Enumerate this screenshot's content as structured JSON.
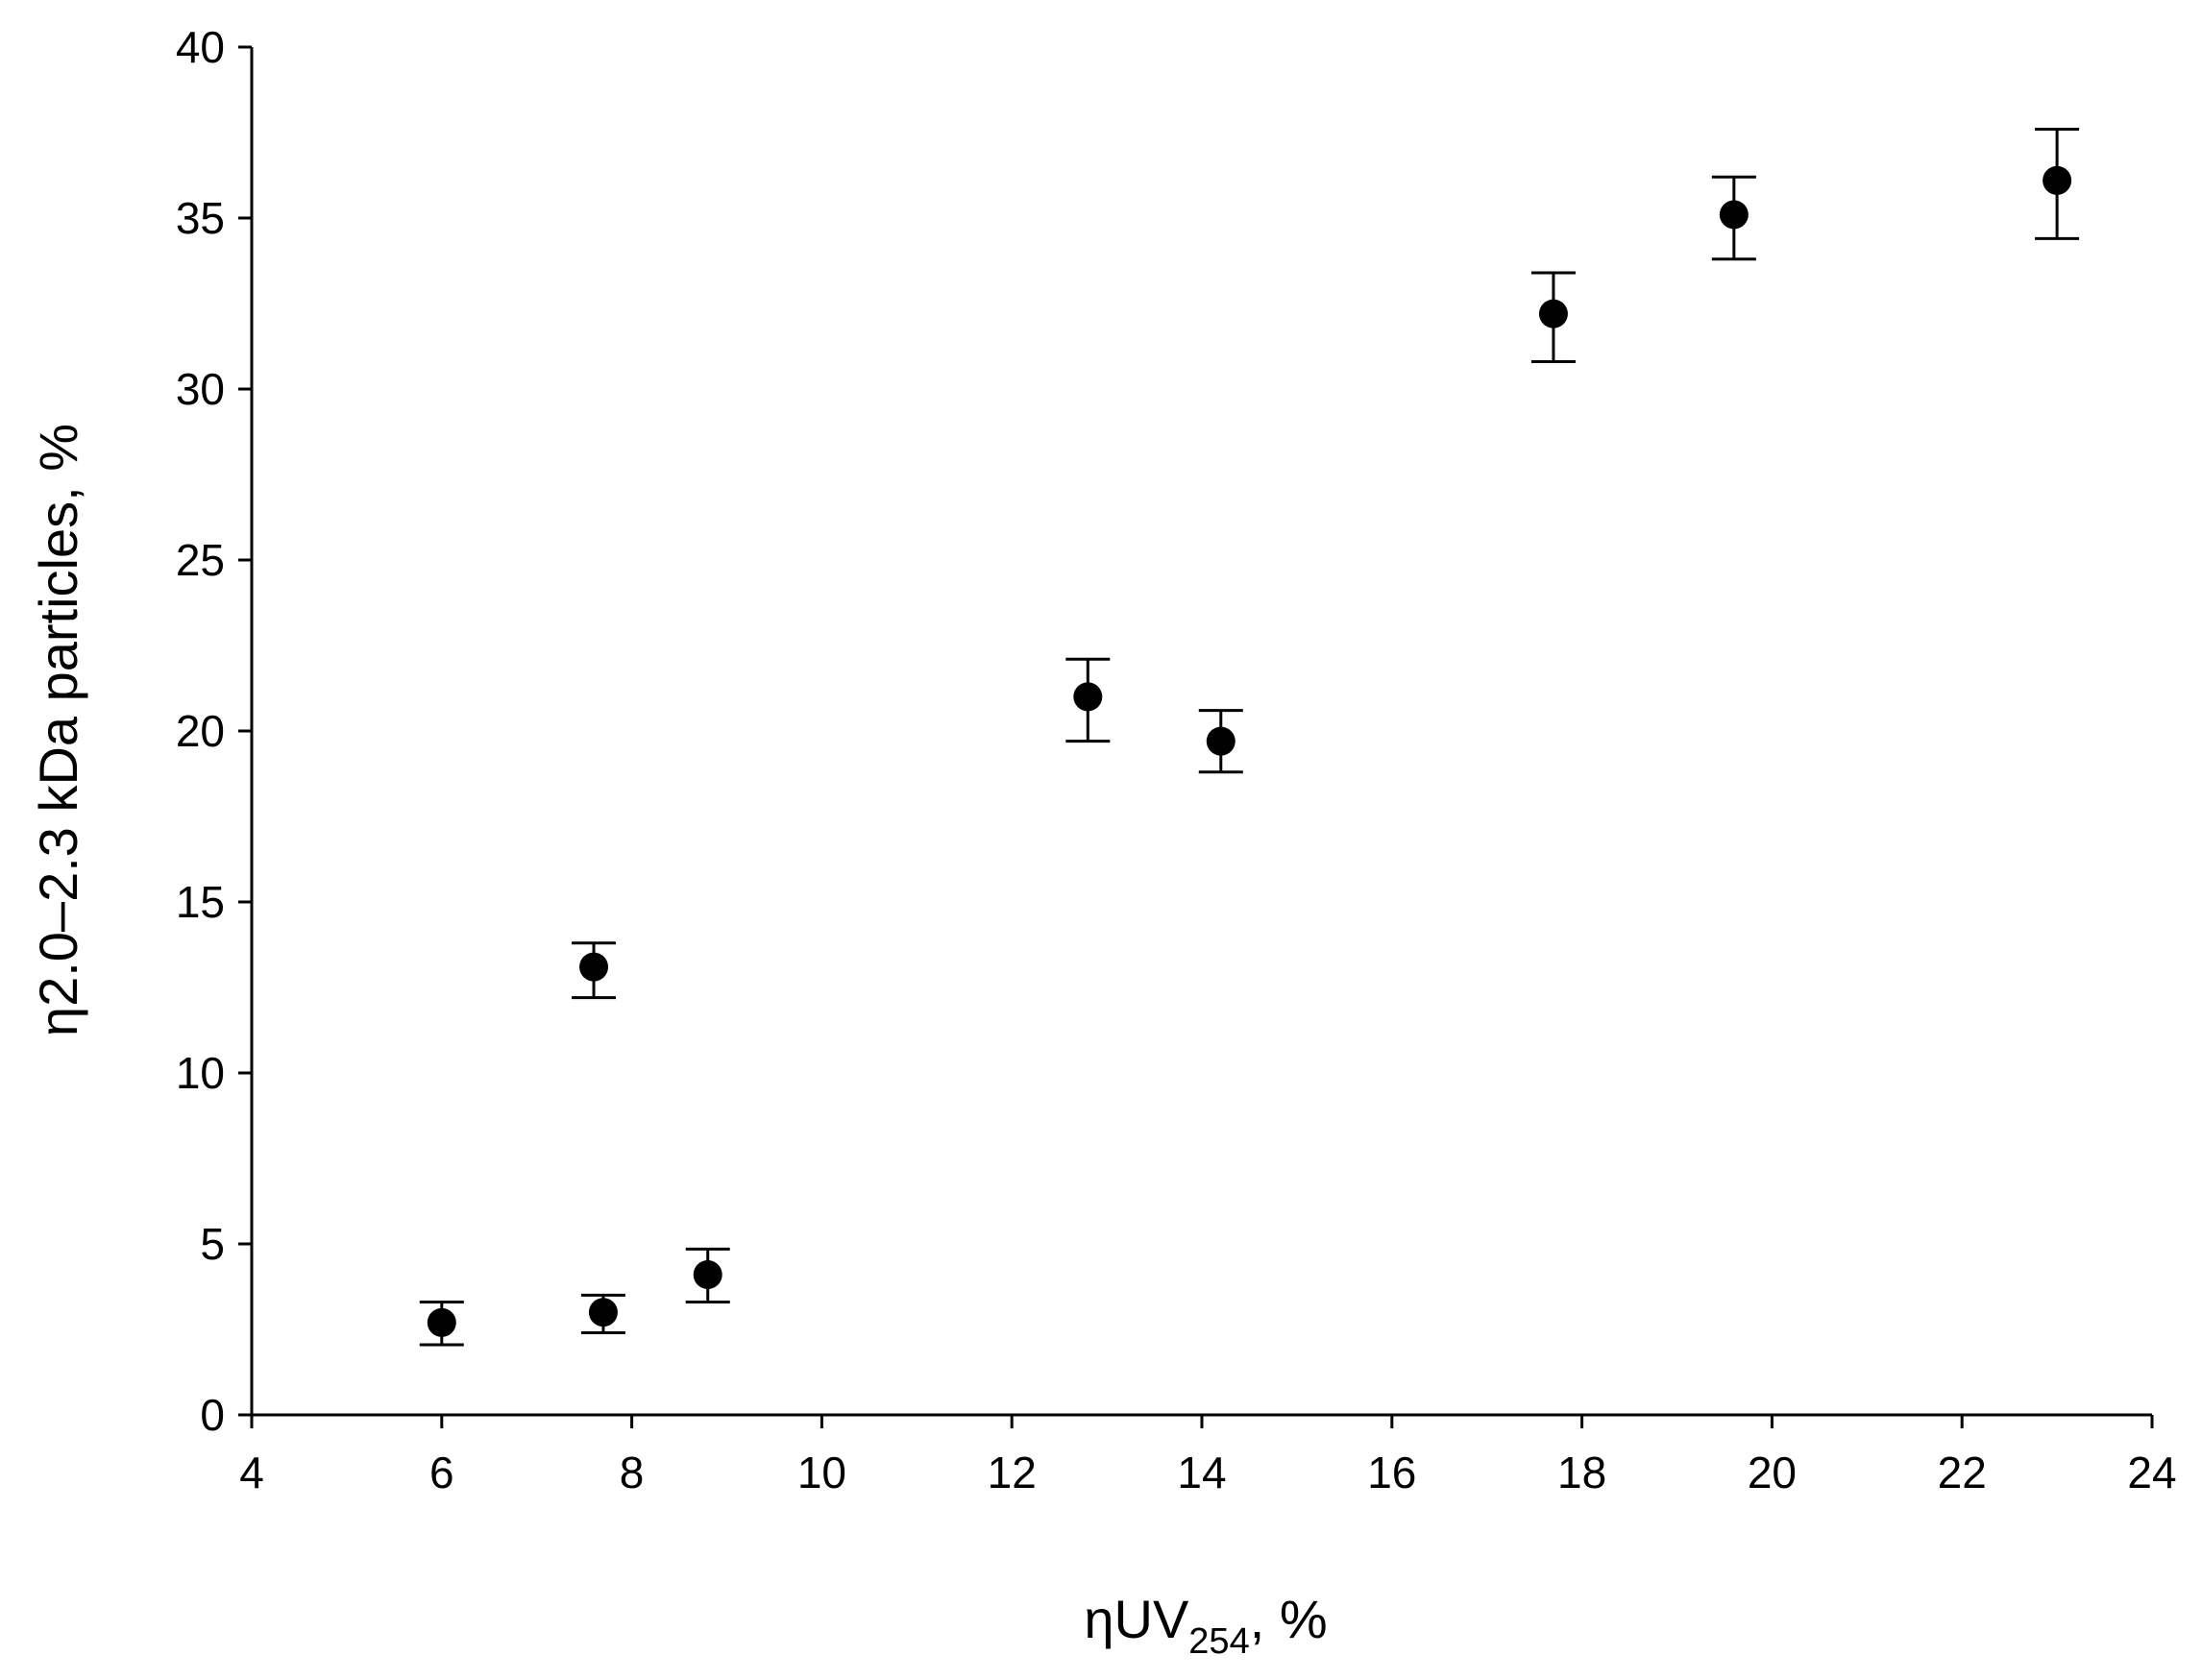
{
  "chart_data": {
    "type": "scatter",
    "xlabel": {
      "main": "ηUV",
      "subscript": "254",
      "suffix": ", %"
    },
    "ylabel": "η2.0–2.3 kDa particles, %",
    "xlim": [
      4,
      24
    ],
    "ylim": [
      0,
      40
    ],
    "xticks": [
      4,
      6,
      8,
      10,
      12,
      14,
      16,
      18,
      20,
      22,
      24
    ],
    "yticks": [
      0,
      5,
      10,
      15,
      20,
      25,
      30,
      35,
      40
    ],
    "grid": false,
    "legend": "none",
    "marker_color": "#000000",
    "points": [
      {
        "x": 6.0,
        "y": 2.7,
        "err_low": 2.05,
        "err_high": 3.3
      },
      {
        "x": 7.6,
        "y": 13.1,
        "err_low": 12.2,
        "err_high": 13.8
      },
      {
        "x": 7.7,
        "y": 3.0,
        "err_low": 2.4,
        "err_high": 3.5
      },
      {
        "x": 8.8,
        "y": 4.1,
        "err_low": 3.3,
        "err_high": 4.85
      },
      {
        "x": 12.8,
        "y": 21.0,
        "err_low": 19.7,
        "err_high": 22.1
      },
      {
        "x": 14.2,
        "y": 19.7,
        "err_low": 18.8,
        "err_high": 20.6
      },
      {
        "x": 17.7,
        "y": 32.2,
        "err_low": 30.8,
        "err_high": 33.4
      },
      {
        "x": 19.6,
        "y": 35.1,
        "err_low": 33.8,
        "err_high": 36.2
      },
      {
        "x": 23.0,
        "y": 36.1,
        "err_low": 34.4,
        "err_high": 37.6
      }
    ]
  }
}
